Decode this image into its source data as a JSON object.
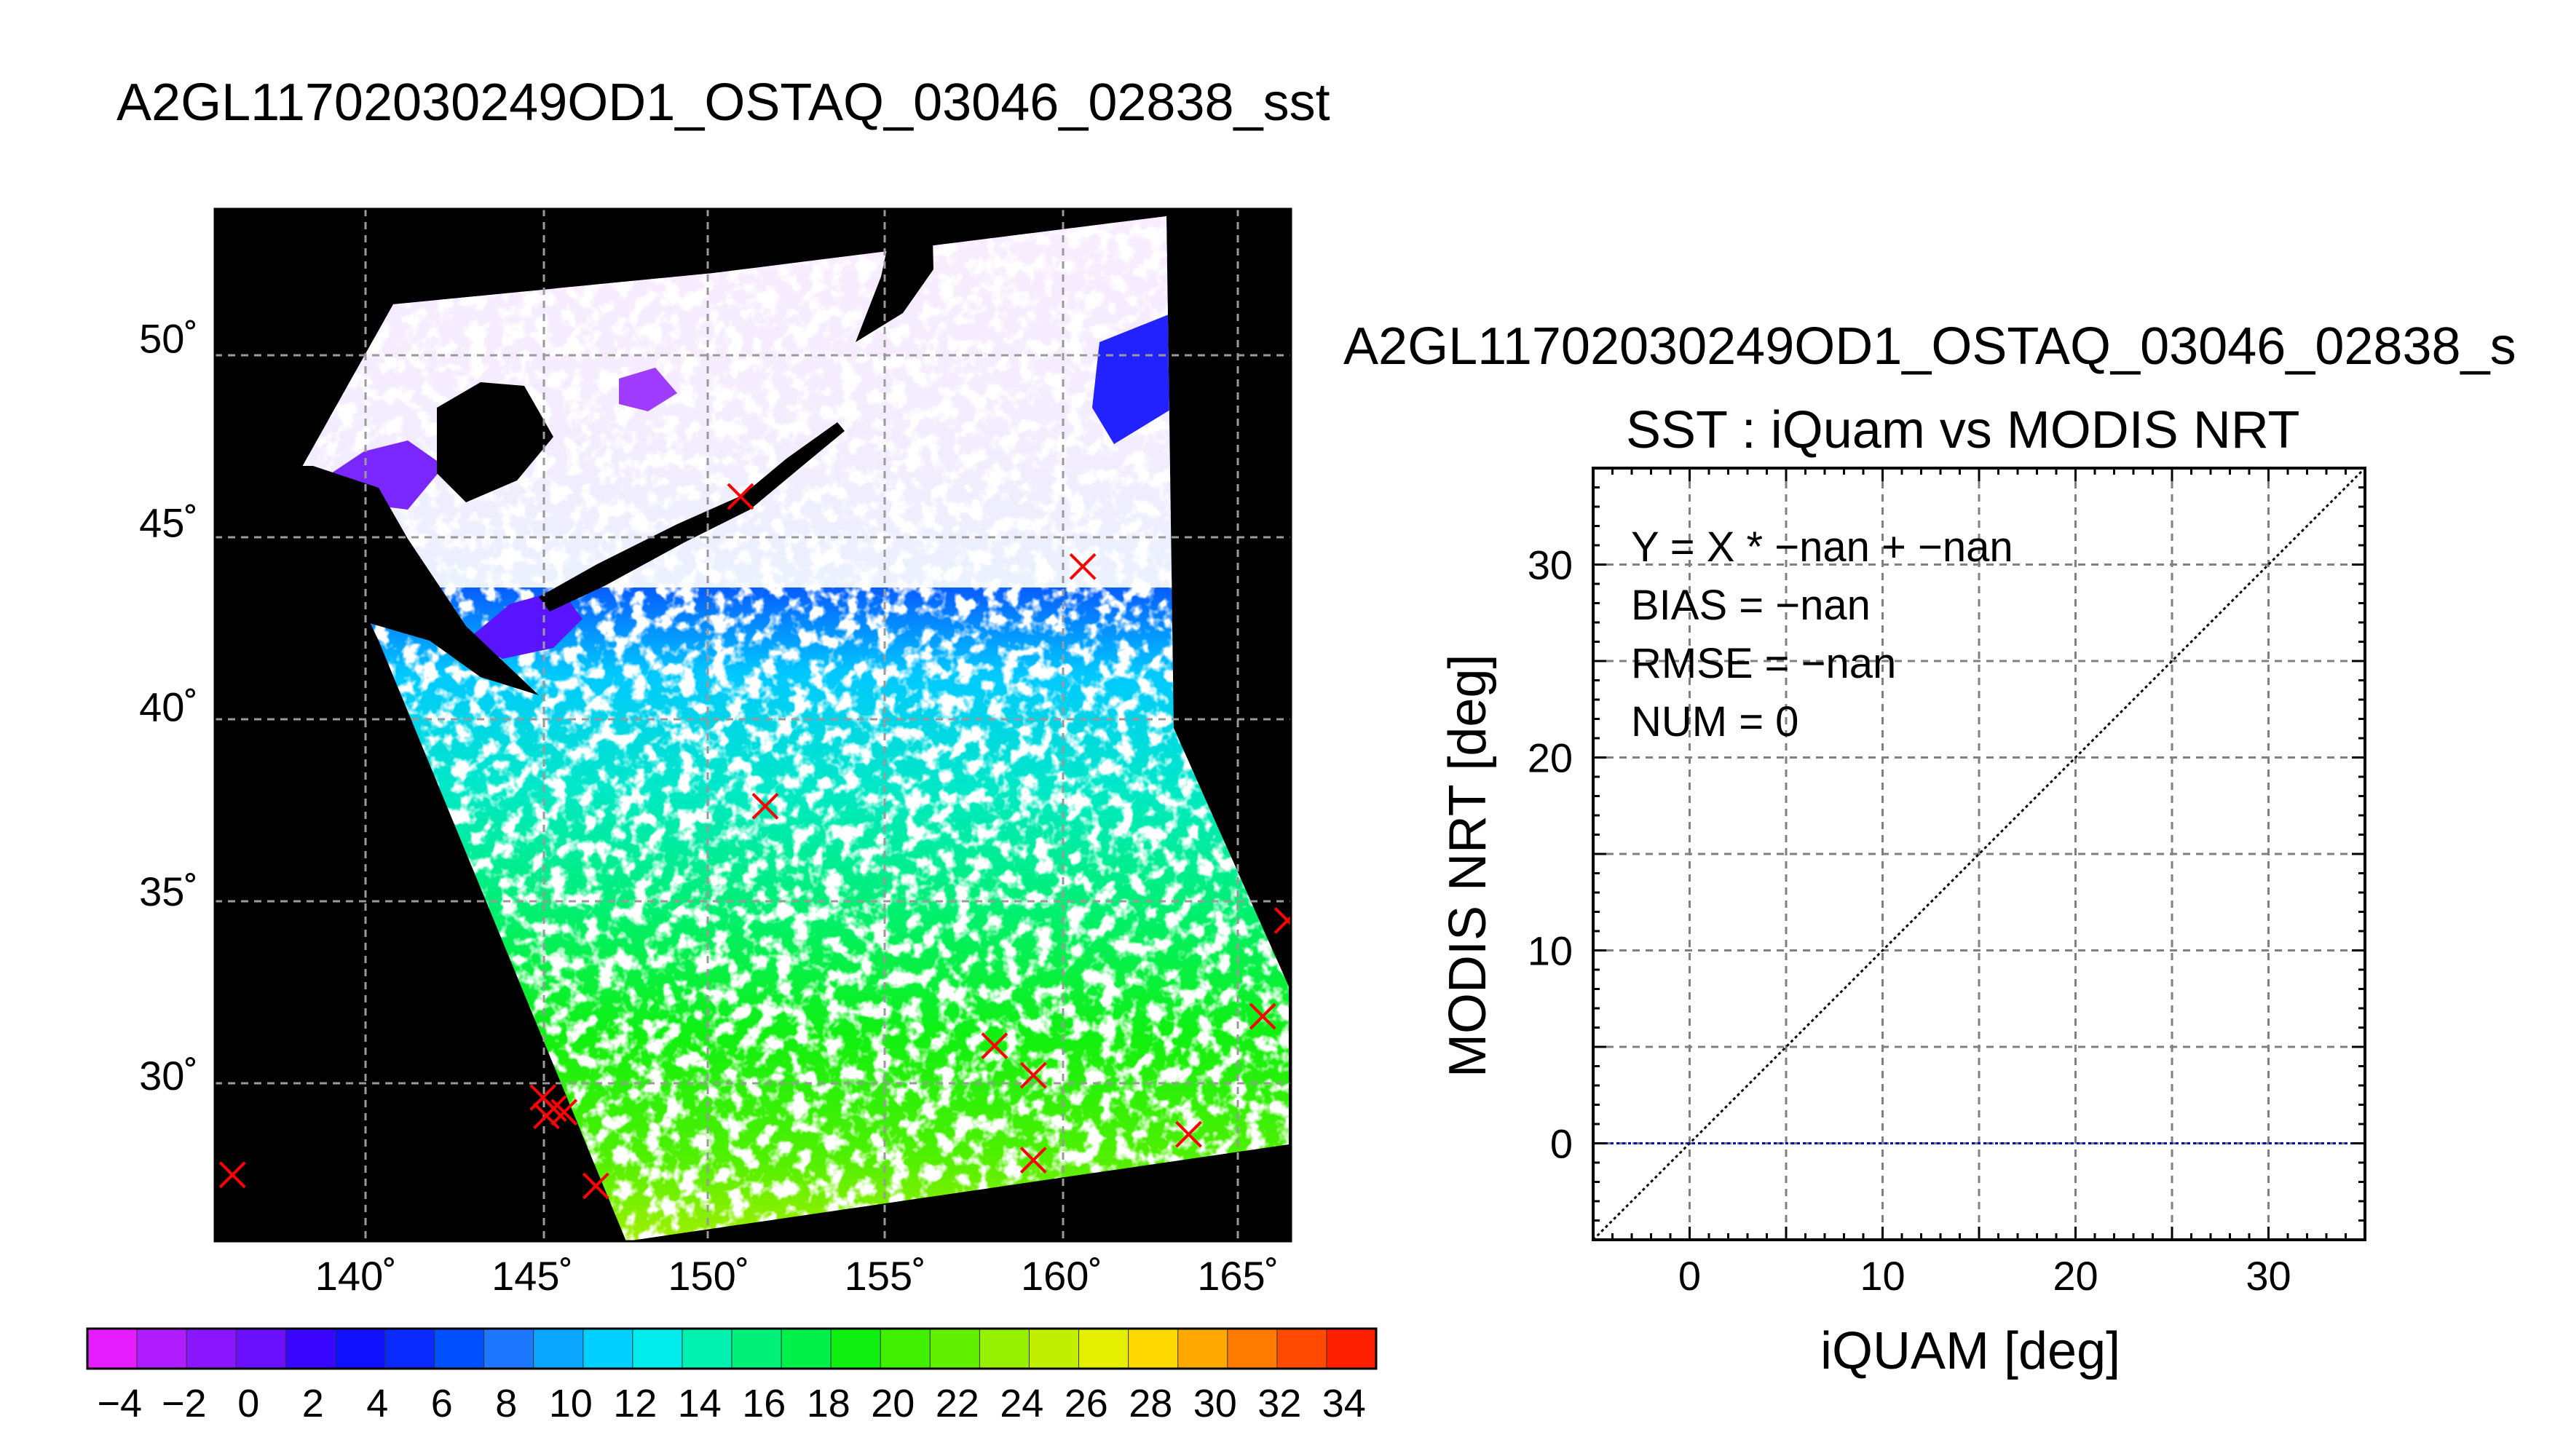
{
  "page": {
    "title": "A2GL11702030249OD1_OSTAQ_03046_02838_sst"
  },
  "chart_data": [
    {
      "type": "scatter",
      "subtype": "geographic-map",
      "title": "A2GL11702030249OD1_OSTAQ_03046_02838_sst",
      "xlim": [
        136,
        166.5
      ],
      "ylim": [
        25.5,
        53.5
      ],
      "x_ticks": [
        140,
        145,
        150,
        155,
        160,
        165
      ],
      "y_ticks": [
        30,
        35,
        40,
        45,
        50
      ],
      "x_tick_labels": [
        "140˚",
        "145˚",
        "150˚",
        "155˚",
        "160˚",
        "165˚"
      ],
      "y_tick_labels": [
        "30˚",
        "35˚",
        "40˚",
        "45˚",
        "50˚"
      ],
      "grid": true,
      "series": [
        {
          "marker": "x",
          "color": "#ff0000",
          "points": [
            {
              "lon": 150.9,
              "lat": 45.7
            },
            {
              "lon": 160.6,
              "lat": 43.8
            },
            {
              "lon": 151.6,
              "lat": 37.3
            },
            {
              "lon": 166.4,
              "lat": 34.2
            },
            {
              "lon": 165.7,
              "lat": 31.6
            },
            {
              "lon": 158.1,
              "lat": 30.8
            },
            {
              "lon": 159.2,
              "lat": 30.0
            },
            {
              "lon": 145.3,
              "lat": 29.4
            },
            {
              "lon": 145.6,
              "lat": 29.1
            },
            {
              "lon": 145.9,
              "lat": 29.0
            },
            {
              "lon": 145.4,
              "lat": 28.9
            },
            {
              "lon": 163.6,
              "lat": 28.4
            },
            {
              "lon": 159.2,
              "lat": 27.7
            },
            {
              "lon": 136.5,
              "lat": 27.3
            },
            {
              "lon": 146.8,
              "lat": 27.0
            }
          ]
        }
      ]
    },
    {
      "type": "line",
      "subtype": "colorbar",
      "ticks": [
        -4,
        -2,
        0,
        2,
        4,
        6,
        8,
        10,
        12,
        14,
        16,
        18,
        20,
        22,
        24,
        26,
        28,
        30,
        32,
        34
      ],
      "tick_labels": [
        "−4",
        "−2",
        "0",
        "2",
        "4",
        "6",
        "8",
        "10",
        "12",
        "14",
        "16",
        "18",
        "20",
        "22",
        "24",
        "26",
        "28",
        "30",
        "32",
        "34"
      ],
      "range": [
        -5,
        35
      ],
      "colors": [
        "#e51cff",
        "#b01cff",
        "#8a16ff",
        "#6a10ff",
        "#3a06ff",
        "#1010ff",
        "#0a2aff",
        "#0050ff",
        "#1e78ff",
        "#0aa6ff",
        "#00d0ff",
        "#00ecec",
        "#00f0b0",
        "#00f07a",
        "#00f04a",
        "#10f010",
        "#40f000",
        "#60f000",
        "#96f000",
        "#c0f000",
        "#e4f000",
        "#ffd800",
        "#ffa800",
        "#ff7c00",
        "#ff4a00",
        "#ff2000"
      ]
    },
    {
      "type": "scatter",
      "header": "A2GL11702030249OD1_OSTAQ_03046_02838_s",
      "title": "SST : iQuam vs MODIS NRT",
      "xlabel": "iQUAM [deg]",
      "ylabel": "MODIS NRT [deg]",
      "xlim": [
        -5,
        35
      ],
      "ylim": [
        -5,
        35
      ],
      "x_ticks": [
        0,
        10,
        20,
        30
      ],
      "y_ticks": [
        0,
        10,
        20,
        30
      ],
      "grid": true,
      "stats": [
        "Y = X * −nan + −nan",
        "BIAS = −nan",
        "RMSE = −nan",
        "NUM = 0"
      ],
      "lines": [
        {
          "kind": "identity",
          "x": [
            -5,
            35
          ],
          "y": [
            -5,
            35
          ],
          "color": "#000000",
          "style": "dotted"
        },
        {
          "kind": "zero",
          "x": [
            -5,
            35
          ],
          "y": [
            0,
            0
          ],
          "color": "#0000c0",
          "style": "dotted"
        }
      ],
      "series": []
    }
  ]
}
